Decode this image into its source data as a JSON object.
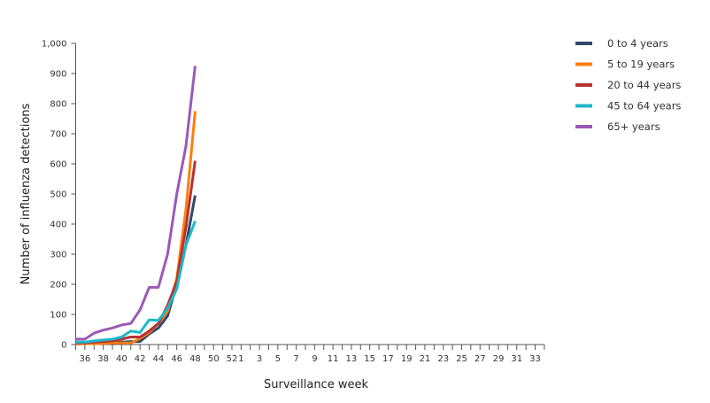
{
  "chart_data": {
    "type": "line",
    "title": "",
    "xlabel": "Surveillance week",
    "ylabel": "Number of influenza detections",
    "ylim": [
      0,
      1000
    ],
    "yticks": [
      "0",
      "100",
      "200",
      "300",
      "400",
      "500",
      "600",
      "700",
      "800",
      "900",
      "1,000"
    ],
    "x_weeks": [
      35,
      36,
      37,
      38,
      39,
      40,
      41,
      42,
      43,
      44,
      45,
      46,
      47,
      48,
      49,
      50,
      51,
      52,
      1,
      2,
      3,
      4,
      5,
      6,
      7,
      8,
      9,
      10,
      11,
      12,
      13,
      14,
      15,
      16,
      17,
      18,
      19,
      20,
      21,
      22,
      23,
      24,
      25,
      26,
      27,
      28,
      29,
      30,
      31,
      32,
      33,
      34
    ],
    "x_labels": [
      "36",
      "38",
      "40",
      "42",
      "44",
      "46",
      "48",
      "50",
      "52",
      "1",
      "3",
      "5",
      "7",
      "9",
      "11",
      "13",
      "15",
      "17",
      "19",
      "21",
      "23",
      "25",
      "27",
      "29",
      "31",
      "33"
    ],
    "grid": false,
    "legend_position": "right",
    "series": [
      {
        "name": "0 to 4 years",
        "color": "#2E4A6B",
        "weeks": [
          35,
          36,
          37,
          38,
          39,
          40,
          41,
          42,
          43,
          44,
          45,
          46,
          47,
          48
        ],
        "values": [
          3,
          3,
          5,
          5,
          6,
          8,
          10,
          10,
          35,
          55,
          95,
          200,
          330,
          495
        ]
      },
      {
        "name": "5 to 19 years",
        "color": "#FF7F0E",
        "weeks": [
          35,
          36,
          37,
          38,
          39,
          40,
          41,
          42,
          43,
          44,
          45,
          46,
          47,
          48
        ],
        "values": [
          2,
          3,
          3,
          4,
          6,
          5,
          5,
          20,
          40,
          70,
          110,
          220,
          450,
          775
        ]
      },
      {
        "name": "20 to 44 years",
        "color": "#B83232",
        "weeks": [
          35,
          36,
          37,
          38,
          39,
          40,
          41,
          42,
          43,
          44,
          45,
          46,
          47,
          48
        ],
        "values": [
          5,
          5,
          8,
          10,
          12,
          18,
          25,
          25,
          45,
          70,
          130,
          210,
          390,
          610
        ]
      },
      {
        "name": "45 to 64 years",
        "color": "#1DB8C9",
        "weeks": [
          35,
          36,
          37,
          38,
          39,
          40,
          41,
          42,
          43,
          44,
          45,
          46,
          47,
          48
        ],
        "values": [
          8,
          8,
          12,
          15,
          18,
          25,
          45,
          40,
          82,
          80,
          120,
          185,
          330,
          410
        ]
      },
      {
        "name": "65+ years",
        "color": "#9B59B6",
        "weeks": [
          35,
          36,
          37,
          38,
          39,
          40,
          41,
          42,
          43,
          44,
          45,
          46,
          47,
          48
        ],
        "values": [
          18,
          18,
          38,
          48,
          55,
          65,
          70,
          115,
          190,
          190,
          300,
          500,
          660,
          925
        ]
      }
    ]
  }
}
